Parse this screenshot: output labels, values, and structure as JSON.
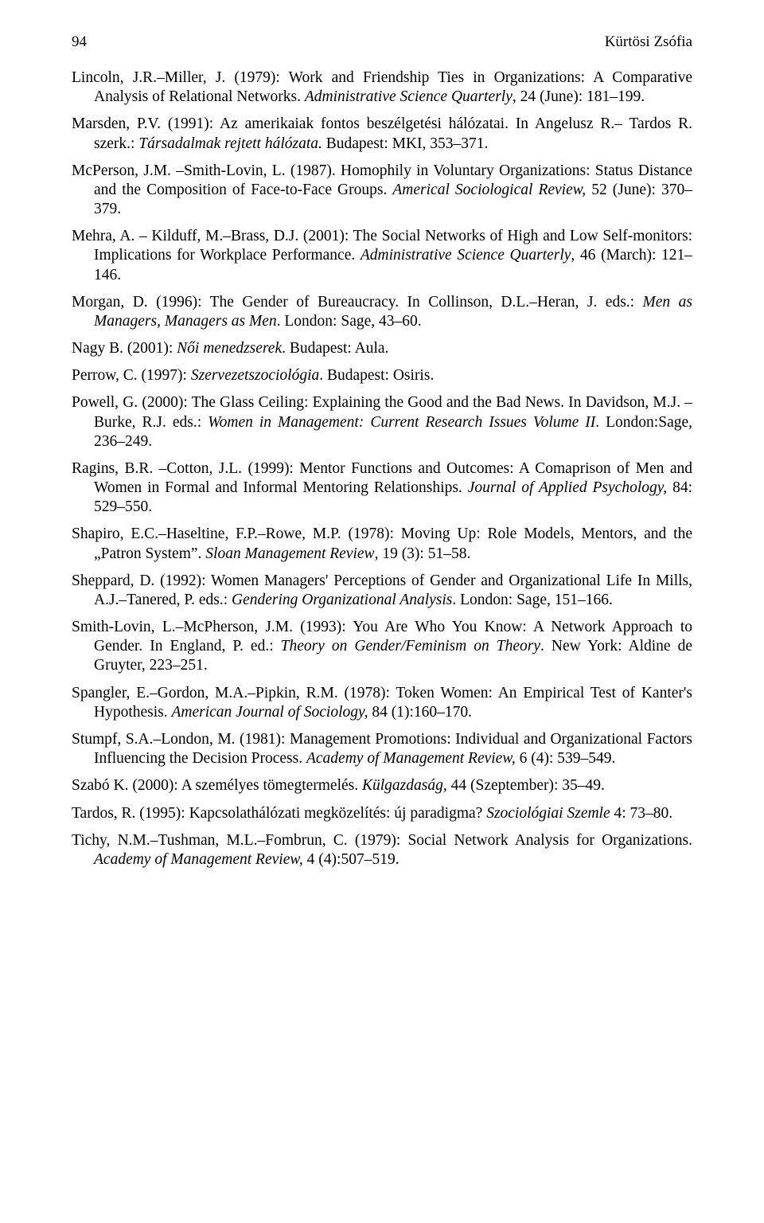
{
  "header": {
    "page_number": "94",
    "running_head": "Kürtösi Zsófia"
  },
  "refs": [
    "Lincoln, J.R.–Miller, J. (1979): Work and Friendship Ties in Organizations: A Comparative Analysis of Relational Networks. <i>Administrative Science Quarterly</i>, 24 (June): 181–199.",
    "Marsden, P.V. (1991): Az amerikaiak fontos beszélgetési hálózatai. In Angelusz R.– Tardos R. szerk.: <i>Társadalmak rejtett hálózata.</i> Budapest: MKI, 353–371.",
    "McPerson, J.M. –Smith-Lovin, L. (1987). Homophily in Voluntary Organizations: Status Distance and the Composition of Face-to-Face Groups. <i>Americal Sociological Review,</i> 52 (June): 370–379.",
    "Mehra, A. – Kilduff, M.–Brass, D.J. (2001): The Social Networks of High and Low Self-monitors: Implications for Workplace Performance. <i>Administrative Science Quarterly</i>, 46 (March): 121–146.",
    "Morgan, D. (1996): The Gender of Bureaucracy. In Collinson, D.L.–Heran, J. eds.: <i>Men as Managers, Managers as Men</i>. London: Sage, 43–60.",
    "Nagy B. (2001): <i>Női menedzserek</i>. Budapest: Aula.",
    "Perrow, C. (1997): <i>Szervezetszociológia</i>. Budapest: Osiris.",
    "Powell, G. (2000): The Glass Ceiling: Explaining the Good and the Bad News. In Davidson, M.J. –Burke, R.J. eds.: <i>Women in Management: Current Research Issues Volume II</i>. London:Sage, 236–249.",
    "Ragins, B.R. –Cotton, J.L. (1999): Mentor Functions and Outcomes: A Comaprison of Men and Women in Formal and Informal Mentoring Relationships. <i>Journal of Applied Psychology,</i> 84: 529–550.",
    "Shapiro, E.C.–Haseltine, F.P.–Rowe, M.P. (1978): Moving Up: Role Models, Mentors, and the „Patron System”. <i>Sloan Management Review</i>, 19 (3): 51–58.",
    "Sheppard, D. (1992): Women Managers' Perceptions of Gender and Organizational Life In Mills, A.J.–Tanered, P. eds.: <i>Gendering Organizational Analysis</i>. London: Sage, 151–166.",
    "Smith-Lovin, L.–McPherson, J.M. (1993): You Are Who You Know: A Network Approach to Gender. In England, P. ed.: <i>Theory on Gender/Feminism on Theory</i>. New York: Aldine de Gruyter, 223–251.",
    "Spangler, E.–Gordon, M.A.–Pipkin, R.M. (1978): Token Women: An Empirical Test of Kanter's Hypothesis. <i>American Journal of Sociology,</i> 84 (1):160–170.",
    "Stumpf, S.A.–London, M. (1981): Management Promotions: Individual and Organizational Factors Influencing the Decision Process. <i>Academy of Management Review,</i> 6 (4): 539–549.",
    "Szabó K. (2000): A személyes tömegtermelés. <i>Külgazdaság,</i> 44 (Szeptember): 35–49.",
    "Tardos, R. (1995): Kapcsolathálózati megközelítés: új paradigma? <i>Szociológiai Szemle</i> 4: 73–80.",
    "Tichy, N.M.–Tushman, M.L.–Fombrun, C. (1979): Social Network Analysis for Organizations. <i>Academy of Management Review,</i> 4 (4):507–519."
  ]
}
